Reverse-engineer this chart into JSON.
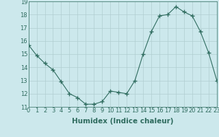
{
  "x": [
    0,
    1,
    2,
    3,
    4,
    5,
    6,
    7,
    8,
    9,
    10,
    11,
    12,
    13,
    14,
    15,
    16,
    17,
    18,
    19,
    20,
    21,
    22,
    23
  ],
  "y": [
    15.7,
    14.9,
    14.3,
    13.8,
    12.9,
    12.0,
    11.7,
    11.2,
    11.2,
    11.4,
    12.2,
    12.1,
    12.0,
    13.0,
    15.0,
    16.7,
    17.9,
    18.0,
    18.6,
    18.2,
    17.9,
    16.7,
    15.1,
    13.0
  ],
  "xlabel": "Humidex (Indice chaleur)",
  "ylim": [
    11,
    19
  ],
  "xlim": [
    0,
    23
  ],
  "yticks": [
    11,
    12,
    13,
    14,
    15,
    16,
    17,
    18,
    19
  ],
  "xticks": [
    0,
    1,
    2,
    3,
    4,
    5,
    6,
    7,
    8,
    9,
    10,
    11,
    12,
    13,
    14,
    15,
    16,
    17,
    18,
    19,
    20,
    21,
    22,
    23
  ],
  "xtick_labels": [
    "0",
    "1",
    "2",
    "3",
    "4",
    "5",
    "6",
    "7",
    "8",
    "9",
    "10",
    "11",
    "12",
    "13",
    "14",
    "15",
    "16",
    "17",
    "18",
    "19",
    "20",
    "21",
    "22",
    "23"
  ],
  "line_color": "#2e6b5e",
  "marker": "+",
  "marker_size": 4,
  "bg_color": "#cce8ec",
  "grid_color": "#b0cdd0",
  "xlabel_fontsize": 7.5,
  "tick_fontsize": 6,
  "label_color": "#2e6b5e"
}
